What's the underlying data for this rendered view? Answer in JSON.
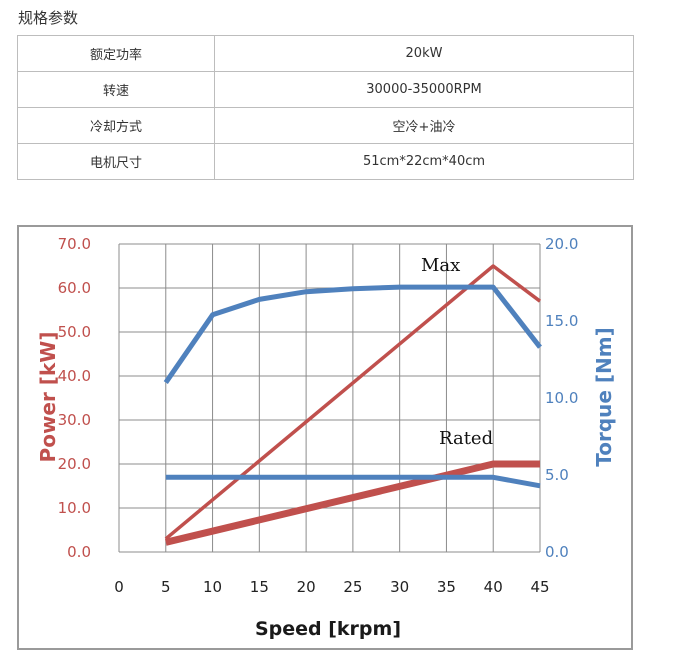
{
  "spec": {
    "title": "规格参数",
    "rows": [
      {
        "key": "额定功率",
        "value": "20kW"
      },
      {
        "key": "转速",
        "value": "30000-35000RPM"
      },
      {
        "key": "冷却方式",
        "value": "空冷+油冷"
      },
      {
        "key": "电机尺寸",
        "value": "51cm*22cm*40cm"
      }
    ]
  },
  "colors": {
    "power": "#c0504d",
    "torque": "#4f81bd",
    "grid": "#8c8c8c"
  },
  "chart_data": {
    "type": "line",
    "xlabel": "Speed [krpm]",
    "ylabel_left": "Power [kW]",
    "ylabel_right": "Torque [Nm]",
    "xlim": [
      0,
      45
    ],
    "ylim_left": [
      0,
      70
    ],
    "ylim_right": [
      0,
      20
    ],
    "x_ticks": [
      0,
      5,
      10,
      15,
      20,
      25,
      30,
      35,
      40,
      45
    ],
    "y_left_ticks": [
      "0.0",
      "10.0",
      "20.0",
      "30.0",
      "40.0",
      "50.0",
      "60.0",
      "70.0"
    ],
    "y_right_ticks": [
      "0.0",
      "5.0",
      "10.0",
      "15.0",
      "20.0"
    ],
    "grid": true,
    "annotations": [
      "Max",
      "Rated"
    ],
    "series": [
      {
        "axis": "left",
        "color": "power",
        "width": "thin",
        "x": [
          5,
          40,
          45
        ],
        "y": [
          3,
          65,
          57
        ]
      },
      {
        "axis": "left",
        "color": "power",
        "width": "thick",
        "x": [
          5,
          40,
          45
        ],
        "y": [
          2.2,
          20,
          20
        ]
      },
      {
        "axis": "right",
        "color": "torque",
        "width": "medium",
        "x": [
          5,
          10,
          15,
          20,
          25,
          30,
          35,
          40,
          45
        ],
        "y": [
          11,
          15.4,
          16.4,
          16.9,
          17.1,
          17.2,
          17.2,
          17.2,
          13.3
        ]
      },
      {
        "axis": "right",
        "color": "torque",
        "width": "medium",
        "x": [
          5,
          10,
          20,
          30,
          40,
          45
        ],
        "y": [
          4.85,
          4.85,
          4.85,
          4.85,
          4.85,
          4.3
        ]
      }
    ]
  }
}
